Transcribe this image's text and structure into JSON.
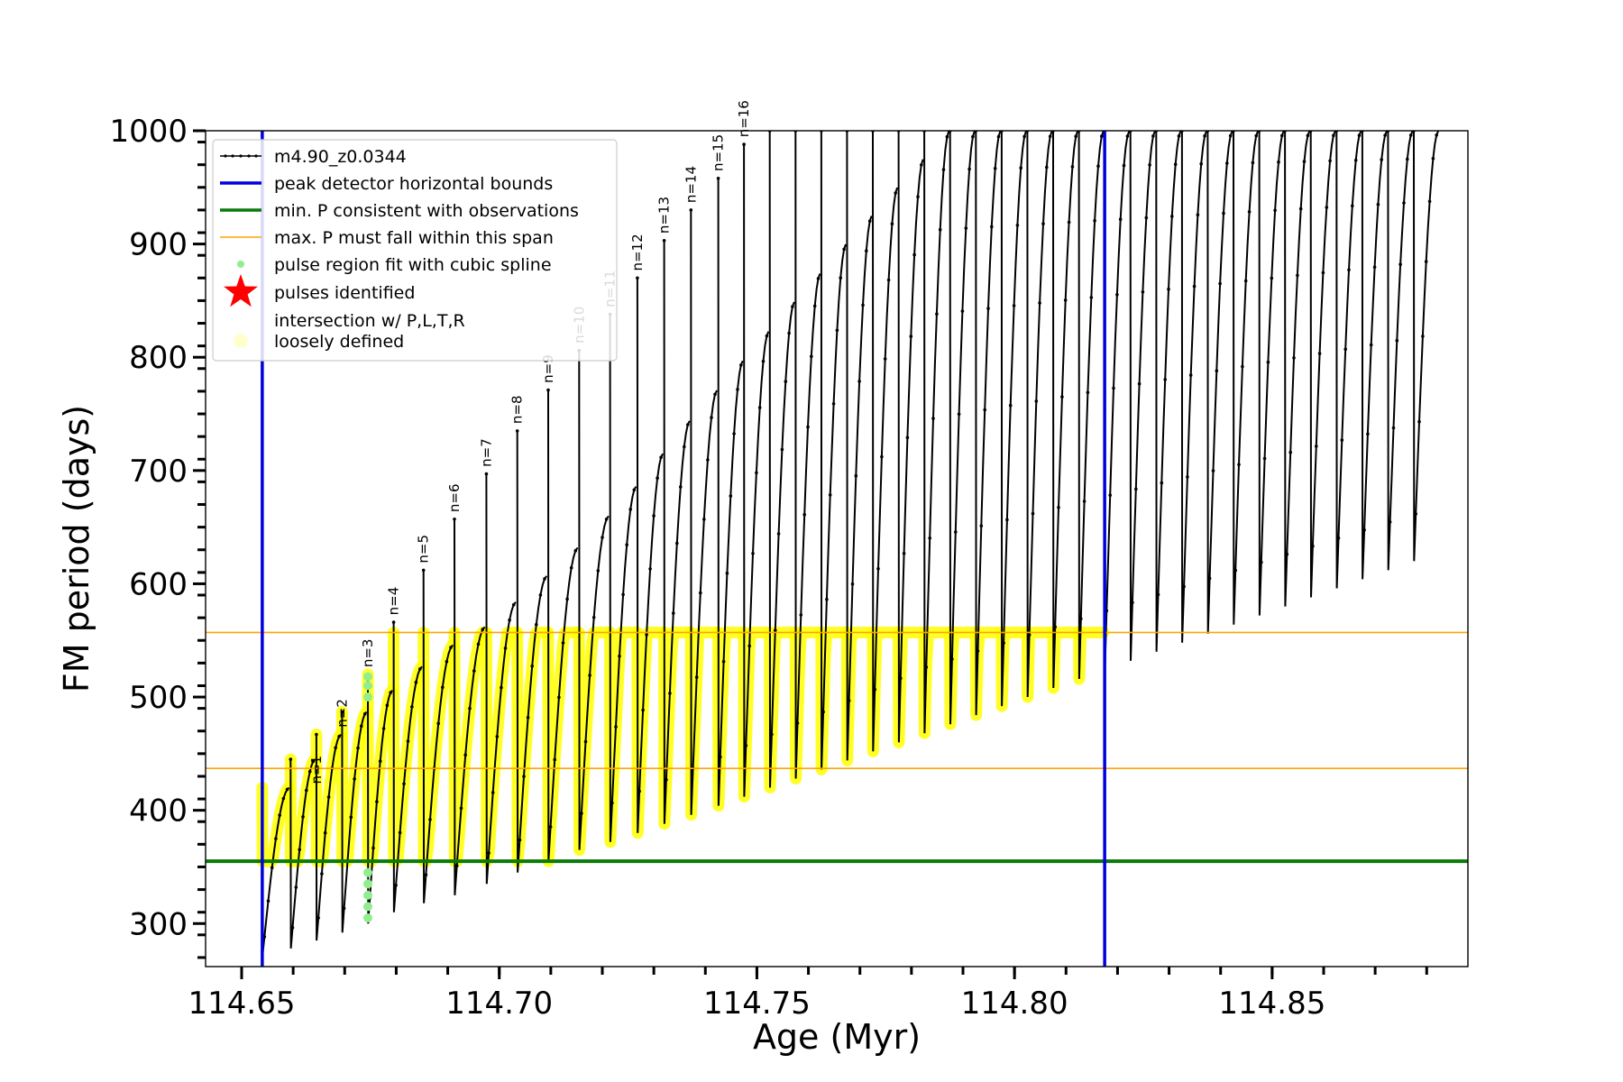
{
  "chart_data": {
    "type": "line",
    "xlabel": "Age (Myr)",
    "ylabel": "FM period (days)",
    "xlim": [
      114.643,
      114.888
    ],
    "ylim": [
      262,
      1000
    ],
    "x_ticks": [
      114.65,
      114.7,
      114.75,
      114.8,
      114.85
    ],
    "x_tick_labels": [
      "114.65",
      "114.70",
      "114.75",
      "114.80",
      "114.85"
    ],
    "y_ticks": [
      300,
      400,
      500,
      600,
      700,
      800,
      900,
      1000
    ],
    "y_tick_labels": [
      "300",
      "400",
      "500",
      "600",
      "700",
      "800",
      "900",
      "1000"
    ],
    "grid": false,
    "legend_position": "top-left",
    "legend": [
      {
        "label": "m4.90_z0.0344",
        "kind": "line-marker",
        "color": "#000000"
      },
      {
        "label": "peak detector horizontal bounds",
        "kind": "line",
        "color": "#0000dd"
      },
      {
        "label": "min. P consistent with observations",
        "kind": "line",
        "color": "#0a7a0a"
      },
      {
        "label": "max. P must fall within this span",
        "kind": "line",
        "color": "#ffa500"
      },
      {
        "label": "pulse region fit with cubic spline",
        "kind": "dot",
        "color": "#90ee90"
      },
      {
        "label": "pulses identified",
        "kind": "star",
        "color": "#ff0000"
      },
      {
        "label": "intersection w/ P,L,T,R",
        "kind": "none",
        "color": "#000000"
      },
      {
        "label": "loosely defined",
        "kind": "dot",
        "color": "#ffffcc"
      }
    ],
    "vertical_lines": [
      {
        "x": 114.654,
        "color": "#0000dd",
        "name": "peak detector horizontal bounds"
      },
      {
        "x": 114.8175,
        "color": "#0000dd",
        "name": "peak detector horizontal bounds"
      }
    ],
    "horizontal_lines": [
      {
        "y": 355,
        "color": "#0a7a0a",
        "name": "min. P consistent with observations"
      },
      {
        "y": 437,
        "color": "#ffa500",
        "name": "max. P must fall within this span"
      },
      {
        "y": 557,
        "color": "#ffa500",
        "name": "max. P must fall within this span"
      }
    ],
    "pulses": [
      {
        "start": 114.654,
        "end": 114.6595,
        "min": 272,
        "max": 420,
        "spike": 420
      },
      {
        "start": 114.6595,
        "end": 114.6645,
        "min": 278,
        "max": 445,
        "spike": 445
      },
      {
        "start": 114.6645,
        "end": 114.6695,
        "min": 285,
        "max": 467,
        "spike": 467
      },
      {
        "start": 114.6695,
        "end": 114.6745,
        "min": 292,
        "max": 487,
        "spike": 487
      },
      {
        "start": 114.6745,
        "end": 114.6795,
        "min": 300,
        "max": 506,
        "spike": 520
      },
      {
        "start": 114.6795,
        "end": 114.6853,
        "min": 310,
        "max": 527,
        "spike": 566
      },
      {
        "start": 114.6853,
        "end": 114.6913,
        "min": 318,
        "max": 546,
        "spike": 612
      },
      {
        "start": 114.6913,
        "end": 114.6975,
        "min": 325,
        "max": 562,
        "spike": 657
      },
      {
        "start": 114.6975,
        "end": 114.7035,
        "min": 335,
        "max": 584,
        "spike": 697
      },
      {
        "start": 114.7035,
        "end": 114.7095,
        "min": 345,
        "max": 607,
        "spike": 735
      },
      {
        "start": 114.7095,
        "end": 114.7155,
        "min": 355,
        "max": 632,
        "spike": 771
      },
      {
        "start": 114.7155,
        "end": 114.7215,
        "min": 365,
        "max": 660,
        "spike": 806
      },
      {
        "start": 114.7215,
        "end": 114.7268,
        "min": 372,
        "max": 686,
        "spike": 838
      },
      {
        "start": 114.7268,
        "end": 114.732,
        "min": 380,
        "max": 715,
        "spike": 870
      },
      {
        "start": 114.732,
        "end": 114.7372,
        "min": 388,
        "max": 744,
        "spike": 903
      },
      {
        "start": 114.7372,
        "end": 114.7425,
        "min": 396,
        "max": 771,
        "spike": 930
      },
      {
        "start": 114.7425,
        "end": 114.7475,
        "min": 404,
        "max": 797,
        "spike": 958
      },
      {
        "start": 114.7475,
        "end": 114.7525,
        "min": 412,
        "max": 823,
        "spike": 988
      },
      {
        "start": 114.7525,
        "end": 114.7575,
        "min": 420,
        "max": 849,
        "spike": 1000
      },
      {
        "start": 114.7575,
        "end": 114.7625,
        "min": 428,
        "max": 874,
        "spike": 1000
      },
      {
        "start": 114.7625,
        "end": 114.7675,
        "min": 436,
        "max": 900,
        "spike": 1000
      },
      {
        "start": 114.7675,
        "end": 114.7725,
        "min": 444,
        "max": 925,
        "spike": 1000
      },
      {
        "start": 114.7725,
        "end": 114.7775,
        "min": 452,
        "max": 950,
        "spike": 1000
      },
      {
        "start": 114.7775,
        "end": 114.7825,
        "min": 460,
        "max": 975,
        "spike": 1000
      },
      {
        "start": 114.7825,
        "end": 114.7875,
        "min": 468,
        "max": 1000,
        "spike": 1000
      },
      {
        "start": 114.7875,
        "end": 114.7925,
        "min": 476,
        "max": 1000,
        "spike": 1000
      },
      {
        "start": 114.7925,
        "end": 114.7975,
        "min": 484,
        "max": 1000,
        "spike": 1000
      },
      {
        "start": 114.7975,
        "end": 114.8025,
        "min": 492,
        "max": 1000,
        "spike": 1000
      },
      {
        "start": 114.8025,
        "end": 114.8075,
        "min": 500,
        "max": 1000,
        "spike": 1000
      },
      {
        "start": 114.8075,
        "end": 114.8125,
        "min": 508,
        "max": 1000,
        "spike": 1000
      },
      {
        "start": 114.8125,
        "end": 114.8175,
        "min": 516,
        "max": 1000,
        "spike": 1000
      },
      {
        "start": 114.8175,
        "end": 114.8225,
        "min": 524,
        "max": 1000,
        "spike": 1000
      },
      {
        "start": 114.8225,
        "end": 114.8275,
        "min": 532,
        "max": 1000,
        "spike": 1000
      },
      {
        "start": 114.8275,
        "end": 114.8325,
        "min": 540,
        "max": 1000,
        "spike": 1000
      },
      {
        "start": 114.8325,
        "end": 114.8375,
        "min": 548,
        "max": 1000,
        "spike": 1000
      },
      {
        "start": 114.8375,
        "end": 114.8425,
        "min": 556,
        "max": 1000,
        "spike": 1000
      },
      {
        "start": 114.8425,
        "end": 114.8475,
        "min": 564,
        "max": 1000,
        "spike": 1000
      },
      {
        "start": 114.8475,
        "end": 114.8525,
        "min": 572,
        "max": 1000,
        "spike": 1000
      },
      {
        "start": 114.8525,
        "end": 114.8575,
        "min": 580,
        "max": 1000,
        "spike": 1000
      },
      {
        "start": 114.8575,
        "end": 114.8625,
        "min": 588,
        "max": 1000,
        "spike": 1000
      },
      {
        "start": 114.8625,
        "end": 114.8675,
        "min": 596,
        "max": 1000,
        "spike": 1000
      },
      {
        "start": 114.8675,
        "end": 114.8725,
        "min": 604,
        "max": 1000,
        "spike": 1000
      },
      {
        "start": 114.8725,
        "end": 114.8775,
        "min": 612,
        "max": 1000,
        "spike": 1000
      },
      {
        "start": 114.8775,
        "end": 114.8825,
        "min": 620,
        "max": 1000,
        "spike": 1000
      }
    ],
    "pulse_labels": [
      {
        "text": "n=1",
        "x": 114.6645,
        "y": 420
      },
      {
        "text": "n=2",
        "x": 114.6695,
        "y": 470
      },
      {
        "text": "n=3",
        "x": 114.6745,
        "y": 523
      },
      {
        "text": "n=4",
        "x": 114.6795,
        "y": 569
      },
      {
        "text": "n=5",
        "x": 114.6853,
        "y": 615
      },
      {
        "text": "n=6",
        "x": 114.6913,
        "y": 660
      },
      {
        "text": "n=7",
        "x": 114.6975,
        "y": 700
      },
      {
        "text": "n=8",
        "x": 114.7035,
        "y": 738
      },
      {
        "text": "n=9",
        "x": 114.7095,
        "y": 774
      },
      {
        "text": "n=10",
        "x": 114.7155,
        "y": 809
      },
      {
        "text": "n=11",
        "x": 114.7215,
        "y": 841
      },
      {
        "text": "n=12",
        "x": 114.7268,
        "y": 873
      },
      {
        "text": "n=13",
        "x": 114.732,
        "y": 906
      },
      {
        "text": "n=14",
        "x": 114.7372,
        "y": 933
      },
      {
        "text": "n=15",
        "x": 114.7425,
        "y": 961
      },
      {
        "text": "n=16",
        "x": 114.7475,
        "y": 991
      }
    ],
    "spline_points": [
      {
        "x": 114.6745,
        "y": 305
      },
      {
        "x": 114.6745,
        "y": 315
      },
      {
        "x": 114.6745,
        "y": 325
      },
      {
        "x": 114.6745,
        "y": 335
      },
      {
        "x": 114.6745,
        "y": 345
      },
      {
        "x": 114.6745,
        "y": 500
      },
      {
        "x": 114.6745,
        "y": 510
      },
      {
        "x": 114.6745,
        "y": 518
      }
    ],
    "colors": {
      "track": "#000000",
      "bounds": "#0000dd",
      "min_p": "#0a7a0a",
      "max_p": "#ffa500",
      "loose": "#ffff00",
      "spline": "#90ee90"
    }
  }
}
